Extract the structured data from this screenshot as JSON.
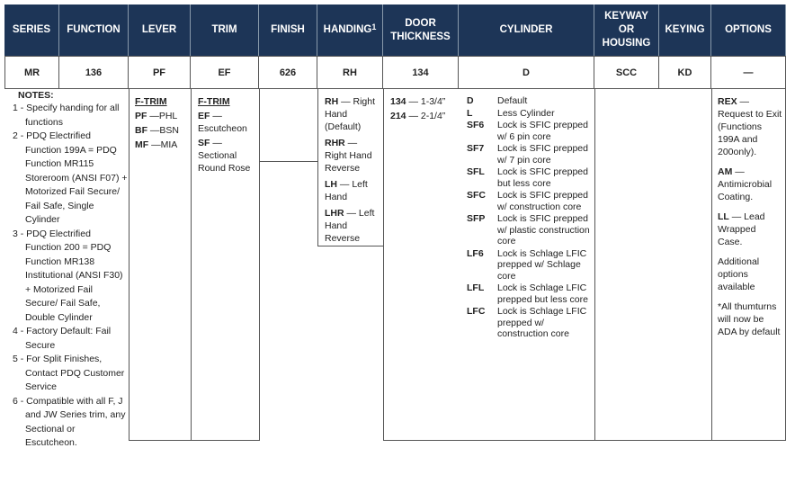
{
  "header": {
    "columns": [
      "SERIES",
      "FUNCTION",
      "LEVER",
      "TRIM",
      "FINISH",
      "HANDING",
      "DOOR THICKNESS",
      "CYLINDER",
      "KEYWAY OR HOUSING",
      "KEYING",
      "OPTIONS"
    ],
    "handing_note": "1"
  },
  "example_row": [
    "MR",
    "136",
    "PF",
    "EF",
    "626",
    "RH",
    "134",
    "D",
    "SCC",
    "KD",
    "—"
  ],
  "notes": {
    "title": "NOTES:",
    "items": [
      "1 - Specify handing for all functions",
      "2 - PDQ Electrified Function 199A = PDQ Function MR115 Storeroom (ANSI F07) + Motorized Fail Secure/ Fail Safe, Single Cylinder",
      "3 - PDQ Electrified Function 200 = PDQ Function MR138 Institutional (ANSI F30) + Motorized Fail Secure/ Fail Safe, Double Cylinder",
      "4 - Factory Default: Fail Secure",
      "5 - For Split Finishes, Contact PDQ Customer Service",
      "6 - Compatible with all F, J and JW Series trim, any Sectional or Escutcheon."
    ]
  },
  "lever": {
    "heading": "F-TRIM",
    "items": [
      {
        "code": "PF",
        "text": "—PHL"
      },
      {
        "code": "BF",
        "text": "—BSN"
      },
      {
        "code": "MF",
        "text": "—MIA"
      }
    ]
  },
  "trim": {
    "heading": "F-TRIM",
    "items": [
      {
        "code": "EF",
        "text": "— Escutcheon"
      },
      {
        "code": "SF",
        "text": "— Sectional Round Rose"
      }
    ]
  },
  "handing": {
    "items": [
      {
        "code": "RH",
        "text": "— Right Hand (Default)"
      },
      {
        "code": "RHR",
        "text": "— Right Hand Reverse"
      },
      {
        "code": "LH",
        "text": "— Left Hand"
      },
      {
        "code": "LHR",
        "text": "— Left Hand Reverse"
      }
    ]
  },
  "door_thickness": {
    "items": [
      {
        "code": "134",
        "text": "— 1-3/4”"
      },
      {
        "code": "214",
        "text": "— 2-1/4”"
      }
    ]
  },
  "cylinder": {
    "items": [
      {
        "code": "D",
        "text": "Default"
      },
      {
        "code": "L",
        "text": "Less Cylinder"
      },
      {
        "code": "SF6",
        "text": "Lock is SFIC prepped w/ 6 pin core"
      },
      {
        "code": "SF7",
        "text": "Lock is SFIC prepped w/ 7 pin core"
      },
      {
        "code": "SFL",
        "text": "Lock is SFIC prepped but less core"
      },
      {
        "code": "SFC",
        "text": "Lock is SFIC prepped w/ construction core"
      },
      {
        "code": "SFP",
        "text": "Lock is SFIC prepped w/ plastic construction core"
      },
      {
        "code": "LF6",
        "text": "Lock is Schlage LFIC prepped w/ Schlage core"
      },
      {
        "code": "LFL",
        "text": "Lock is Schlage LFIC prepped but less core"
      },
      {
        "code": "LFC",
        "text": "Lock is Schlage LFIC prepped w/ construction core"
      }
    ]
  },
  "options": {
    "items": [
      {
        "code": "REX",
        "text": "— Request to Exit (Functions 199A and 200only)."
      },
      {
        "code": "AM",
        "text": "— Antimicrobial Coating."
      },
      {
        "code": "LL",
        "text": "— Lead Wrapped Case."
      },
      {
        "text": "Additional options available"
      },
      {
        "text": "*All thumturns will now be ADA by default"
      }
    ]
  }
}
